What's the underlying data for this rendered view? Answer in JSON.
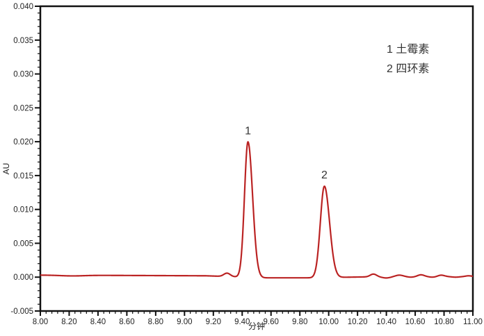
{
  "figure": {
    "kind": "chromatogram",
    "xlabel": "分钟",
    "ylabel": "AU"
  },
  "chart_data": {
    "type": "line",
    "title": "",
    "xlabel": "分钟",
    "ylabel": "AU",
    "xlim": [
      8.0,
      11.0
    ],
    "ylim": [
      -0.005,
      0.04
    ],
    "x_tick_labels": [
      "8.00",
      "8.20",
      "8.40",
      "8.60",
      "8.80",
      "9.00",
      "9.20",
      "9.40",
      "9.60",
      "9.80",
      "10.00",
      "10.20",
      "10.40",
      "10.60",
      "10.80",
      "11.00"
    ],
    "y_tick_labels": [
      "0.040",
      "0.035",
      "0.030",
      "0.025",
      "0.020",
      "0.015",
      "0.010",
      "0.005",
      "0.000",
      "-0.005"
    ],
    "x_minor_step": 0.04,
    "y_minor_step": 0.001,
    "grid": "off",
    "line_color": "#cc2626",
    "line_core_color": "#801d1d",
    "axis_color": "#111111",
    "text_color": "#222222",
    "legend": {
      "position": "top-right",
      "entries": [
        "1  土霉素",
        "2  四环素"
      ]
    },
    "baseline_points": [
      [
        8.0,
        0.0003
      ],
      [
        9.15,
        0.0002
      ],
      [
        9.55,
        -0.0001
      ],
      [
        9.9,
        -0.0001
      ],
      [
        10.15,
        0.0
      ],
      [
        10.45,
        0.0001
      ],
      [
        11.0,
        0.0001
      ]
    ],
    "peaks": [
      {
        "label": "1",
        "name": "土霉素",
        "rt_min": 9.44,
        "height_au": 0.02,
        "sigma_left": 0.024,
        "sigma_right": 0.032
      },
      {
        "label": "2",
        "name": "四环素",
        "rt_min": 9.97,
        "height_au": 0.0135,
        "sigma_left": 0.028,
        "sigma_right": 0.036
      }
    ],
    "minor_features": [
      {
        "rt_min": 8.22,
        "height_au": -0.0001,
        "sigma": 0.08
      },
      {
        "rt_min": 9.295,
        "height_au": 0.0005,
        "sigma": 0.022
      },
      {
        "rt_min": 10.31,
        "height_au": 0.0004,
        "sigma": 0.022
      },
      {
        "rt_min": 10.4,
        "height_au": -0.0002,
        "sigma": 0.03
      },
      {
        "rt_min": 10.49,
        "height_au": 0.0002,
        "sigma": 0.025
      },
      {
        "rt_min": 10.57,
        "height_au": -0.0001,
        "sigma": 0.025
      },
      {
        "rt_min": 10.64,
        "height_au": 0.00025,
        "sigma": 0.022
      },
      {
        "rt_min": 10.72,
        "height_au": -0.0001,
        "sigma": 0.025
      },
      {
        "rt_min": 10.78,
        "height_au": 0.0002,
        "sigma": 0.022
      },
      {
        "rt_min": 10.88,
        "height_au": -0.0001,
        "sigma": 0.03
      },
      {
        "rt_min": 10.97,
        "height_au": 0.0001,
        "sigma": 0.02
      }
    ]
  }
}
